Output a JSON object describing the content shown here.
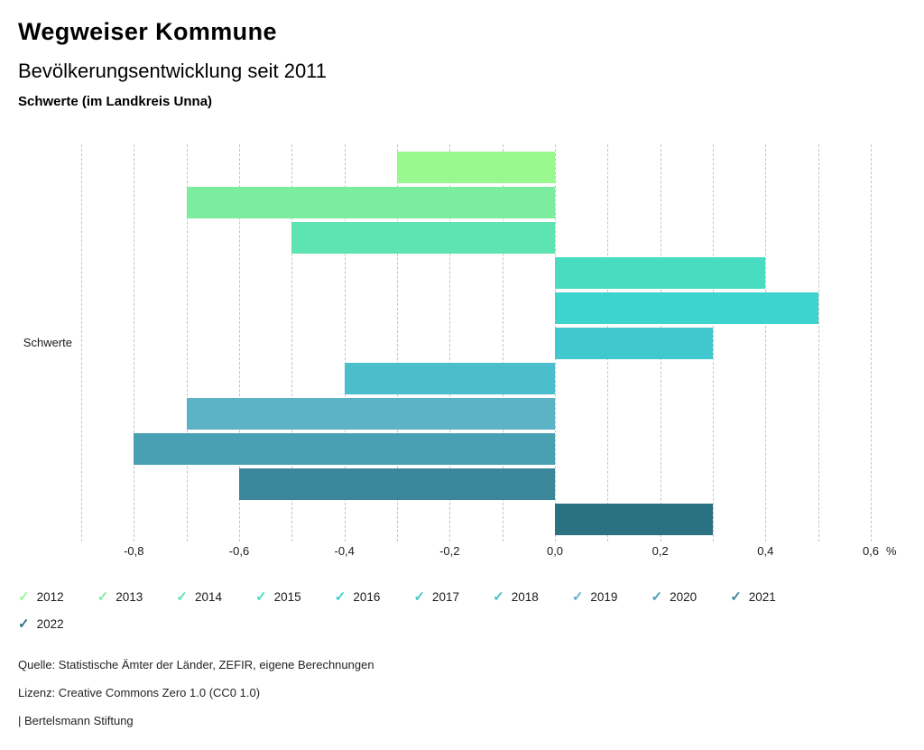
{
  "header": {
    "title": "Wegweiser Kommune",
    "subtitle": "Bevölkerungsentwicklung seit 2011",
    "region": "Schwerte (im Landkreis Unna)"
  },
  "chart_data": {
    "type": "bar",
    "orientation": "horizontal",
    "title": "Bevölkerungsentwicklung seit 2011",
    "group_label": "Schwerte",
    "unit": "%",
    "categories": [
      "2012",
      "2013",
      "2014",
      "2015",
      "2016",
      "2017",
      "2018",
      "2019",
      "2020",
      "2021",
      "2022"
    ],
    "values": [
      -0.3,
      -0.7,
      -0.5,
      0.4,
      0.5,
      0.3,
      -0.4,
      -0.7,
      -0.8,
      -0.6,
      0.3
    ],
    "colors": [
      "#9AF98E",
      "#7CEC9F",
      "#5DE4B2",
      "#48DCC3",
      "#3ED3CD",
      "#41C8CE",
      "#4BBECB",
      "#5CB3C6",
      "#4AA0B3",
      "#398798",
      "#2A7282"
    ],
    "xlim": [
      -0.9,
      0.6
    ],
    "grid_step": 0.1,
    "tick_step": 0.2,
    "ticks": [
      -0.8,
      -0.6,
      -0.4,
      -0.2,
      0.0,
      0.2,
      0.4,
      0.6
    ],
    "tick_labels": [
      "-0,8",
      "-0,6",
      "-0,4",
      "-0,2",
      "0,0",
      "0,2",
      "0,4",
      "0,6"
    ],
    "grid": "dashed-vertical",
    "legend_position": "bottom",
    "legend_check_icon": "✓"
  },
  "footer": {
    "source": "Quelle: Statistische Ämter der Länder, ZEFIR, eigene Berechnungen",
    "license": "Lizenz: Creative Commons Zero 1.0 (CC0 1.0)",
    "attribution": "| Bertelsmann Stiftung"
  }
}
